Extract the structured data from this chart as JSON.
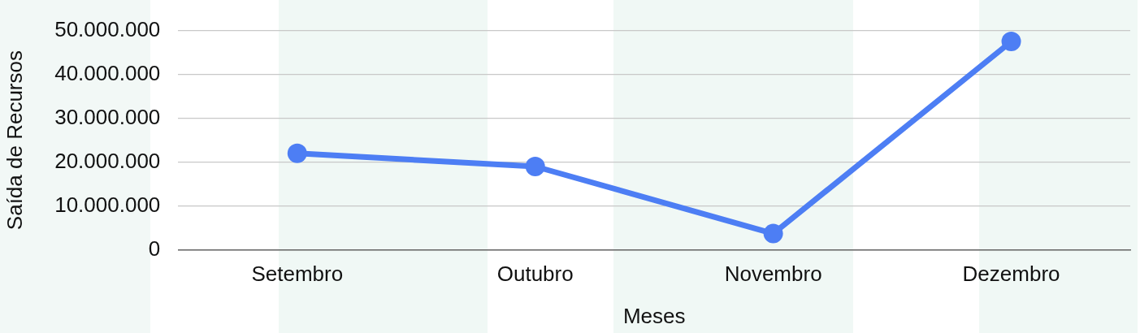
{
  "chart_data": {
    "type": "line",
    "xlabel": "Meses",
    "ylabel": "Saída de Recursos",
    "categories": [
      "Setembro",
      "Outubro",
      "Novembro",
      "Dezembro"
    ],
    "series": [
      {
        "color": "#4d7ef4",
        "values": [
          22000000,
          19000000,
          3700000,
          47500000
        ]
      }
    ],
    "ylim": [
      0,
      50000000
    ],
    "yticks": [
      {
        "value": 0,
        "label": "0"
      },
      {
        "value": 10000000,
        "label": "10.000.000"
      },
      {
        "value": 20000000,
        "label": "20.000.000"
      },
      {
        "value": 30000000,
        "label": "30.000.000"
      },
      {
        "value": 40000000,
        "label": "40.000.000"
      },
      {
        "value": 50000000,
        "label": "50.000.000"
      }
    ],
    "grid": "y",
    "marker": "circle",
    "line_style": "solid",
    "legend": false
  }
}
